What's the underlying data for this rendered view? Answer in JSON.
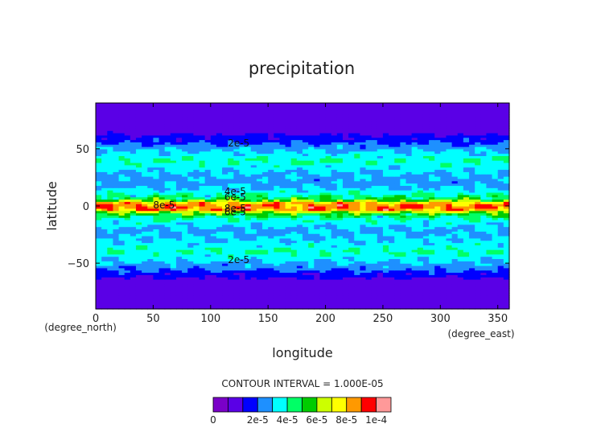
{
  "chart_data": {
    "type": "heatmap",
    "title": "precipitation",
    "xlabel": "longitude",
    "ylabel": "latitude",
    "x_unit_label": "(degree_east)",
    "y_unit_label": "(degree_north)",
    "xlim": [
      0,
      360
    ],
    "ylim": [
      -90,
      90
    ],
    "x_ticks": [
      0,
      50,
      100,
      150,
      200,
      250,
      300,
      350
    ],
    "y_ticks": [
      -50,
      0,
      50
    ],
    "contour_interval_label": "CONTOUR INTERVAL = 1.000E-05",
    "colorbar": {
      "levels": [
        0,
        1e-05,
        2e-05,
        3e-05,
        4e-05,
        5e-05,
        6e-05,
        7e-05,
        8e-05,
        9e-05,
        0.0001
      ],
      "colors": [
        "#7a00c8",
        "#5a00e6",
        "#0000ff",
        "#1e90ff",
        "#00ffff",
        "#00ff66",
        "#00cc00",
        "#ccff00",
        "#ffff00",
        "#ff9900",
        "#ff0000",
        "#ff9999"
      ],
      "tick_labels": [
        "0",
        "2e-5",
        "4e-5",
        "6e-5",
        "8e-5",
        "1e-4"
      ]
    },
    "zonal_profile": {
      "latitude": [
        -90,
        -70,
        -60,
        -55,
        -50,
        -45,
        -40,
        -30,
        -20,
        -15,
        -10,
        -7,
        -5,
        -3,
        0,
        3,
        5,
        7,
        10,
        15,
        20,
        30,
        40,
        45,
        50,
        55,
        60,
        70,
        90
      ],
      "value": [
        3e-06,
        4e-06,
        1.2e-05,
        2.2e-05,
        2.8e-05,
        3.4e-05,
        4e-05,
        3.1e-05,
        2.8e-05,
        3.4e-05,
        4e-05,
        5.2e-05,
        6.5e-05,
        8.5e-05,
        9e-05,
        8e-05,
        6e-05,
        4.8e-05,
        4e-05,
        3.1e-05,
        2.6e-05,
        3e-05,
        4e-05,
        3.4e-05,
        2.8e-05,
        2e-05,
        1.2e-05,
        4e-06,
        3e-06
      ]
    },
    "contour_labels": [
      {
        "text": "2e-5",
        "lon": 115,
        "lat": 52
      },
      {
        "text": "4e-5",
        "lon": 112,
        "lat": 10
      },
      {
        "text": "6e-5",
        "lon": 112,
        "lat": 5
      },
      {
        "text": "8e-5",
        "lon": 50,
        "lat": -2
      },
      {
        "text": "8e-5",
        "lon": 112,
        "lat": -5
      },
      {
        "text": "6e-5",
        "lon": 112,
        "lat": -8
      },
      {
        "text": "2e-5",
        "lon": 115,
        "lat": -50
      }
    ]
  }
}
